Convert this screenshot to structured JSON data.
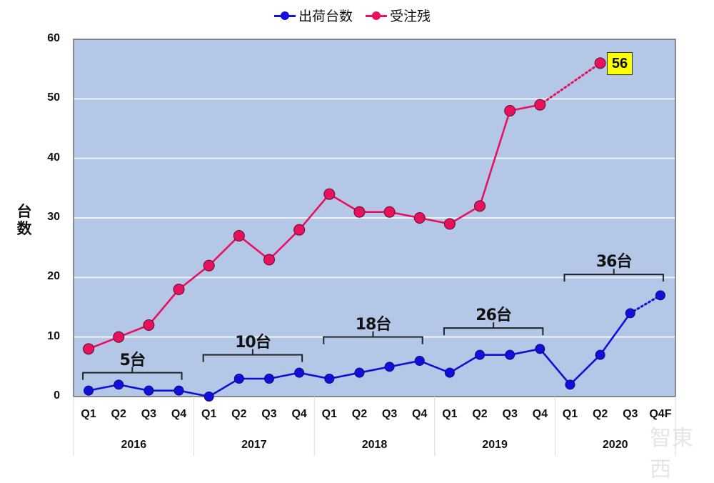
{
  "chart_data": {
    "type": "line",
    "title": "",
    "xlabel": "",
    "ylabel": "台数",
    "ylim": [
      0,
      60
    ],
    "yticks": [
      0,
      10,
      20,
      30,
      40,
      50,
      60
    ],
    "grid": true,
    "legend_position": "top",
    "categories": [
      "Q1",
      "Q2",
      "Q3",
      "Q4",
      "Q1",
      "Q2",
      "Q3",
      "Q4",
      "Q1",
      "Q2",
      "Q3",
      "Q4",
      "Q1",
      "Q2",
      "Q3",
      "Q4",
      "Q1",
      "Q2",
      "Q3",
      "Q4F"
    ],
    "years": [
      "2016",
      "2017",
      "2018",
      "2019",
      "2020"
    ],
    "series": [
      {
        "name": "出荷台数",
        "color": "#1010D8",
        "values": [
          1,
          2,
          1,
          1,
          0,
          3,
          3,
          4,
          3,
          4,
          5,
          6,
          4,
          7,
          7,
          8,
          2,
          7,
          14,
          17
        ],
        "forecast_from_index": 18
      },
      {
        "name": "受注残",
        "color": "#E8115B",
        "values": [
          8,
          10,
          12,
          18,
          22,
          27,
          23,
          28,
          34,
          31,
          31,
          30,
          29,
          32,
          48,
          49,
          null,
          56,
          null,
          null
        ],
        "forecast_segment": [
          15,
          17
        ]
      }
    ],
    "annotations": [
      {
        "text": "5台",
        "span": [
          0,
          3
        ],
        "y": 4
      },
      {
        "text": "10台",
        "span": [
          4,
          7
        ],
        "y": 7
      },
      {
        "text": "18台",
        "span": [
          8,
          11
        ],
        "y": 10
      },
      {
        "text": "26台",
        "span": [
          12,
          15
        ],
        "y": 11.5
      },
      {
        "text": "36台",
        "span": [
          16,
          19
        ],
        "y": 20.5
      },
      {
        "text": "56",
        "point_index": 17,
        "series": "受注残",
        "style": "yellow-box"
      }
    ]
  },
  "legend": {
    "items": [
      {
        "label": "出荷台数",
        "color": "#1010D8"
      },
      {
        "label": "受注残",
        "color": "#E8115B"
      }
    ]
  },
  "axis": {
    "y_label_line1": "台",
    "y_label_line2": "数"
  },
  "colors": {
    "plot_bg": "#B4C7E7",
    "grid": "#EEF3FA",
    "blue": "#1010D8",
    "magenta": "#E8115B"
  },
  "callout_label": "56",
  "watermark": "智東西"
}
